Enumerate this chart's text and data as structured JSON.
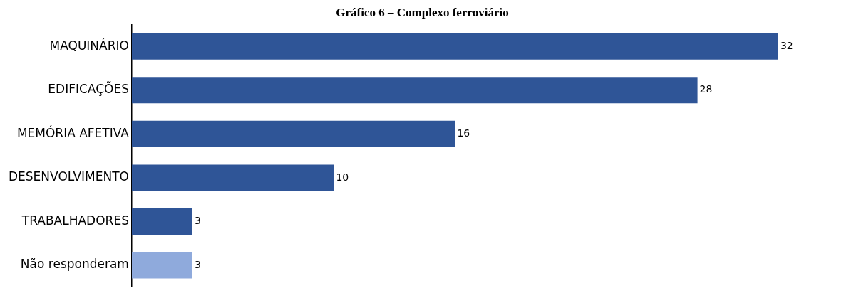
{
  "chart_data": {
    "type": "bar",
    "orientation": "horizontal",
    "title": "Gráfico 6 – Complexo ferroviário",
    "categories": [
      "MAQUINÁRIO",
      "EDIFICAÇÕES",
      "MEMÓRIA AFETIVA",
      "DESENVOLVIMENTO",
      "TRABALHADORES",
      "Não responderam"
    ],
    "values": [
      32,
      28,
      16,
      10,
      3,
      3
    ],
    "colors": [
      "#2f5597",
      "#2f5597",
      "#2f5597",
      "#2f5597",
      "#2f5597",
      "#8faadc"
    ],
    "data_labels": true,
    "legend": false
  }
}
